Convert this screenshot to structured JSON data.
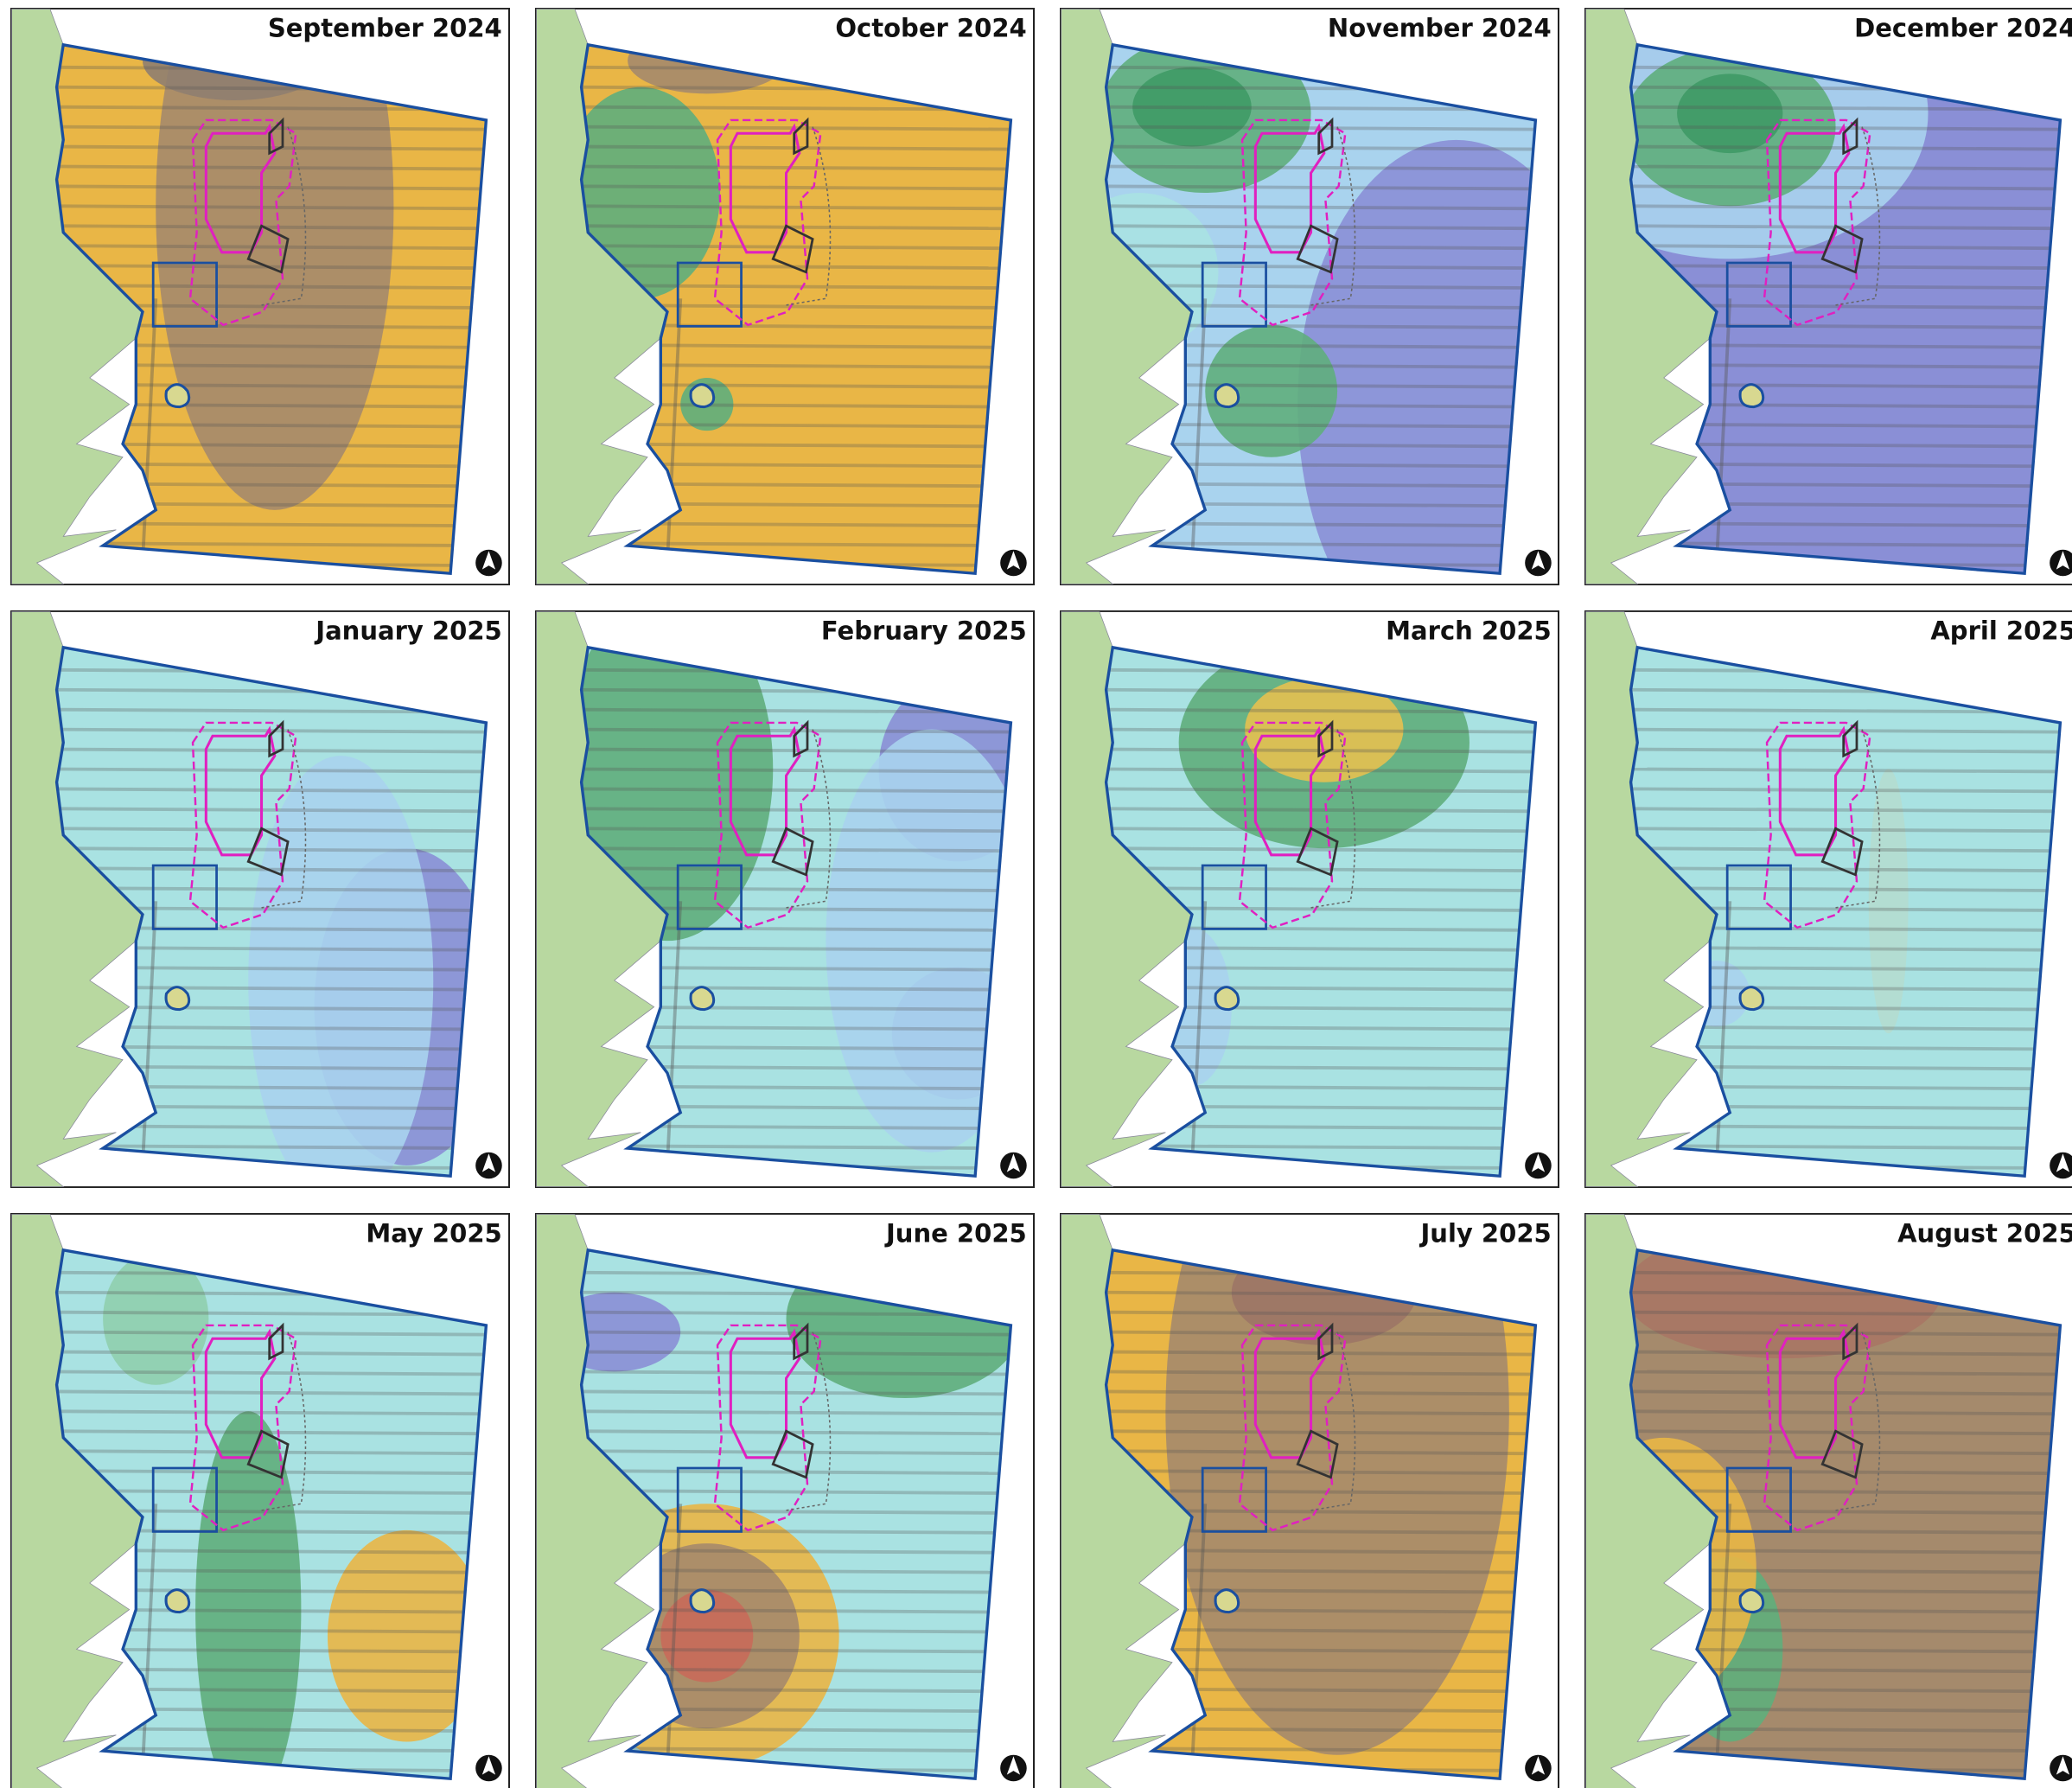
{
  "panels": [
    {
      "title": "September 2024"
    },
    {
      "title": "October 2024"
    },
    {
      "title": "November 2024"
    },
    {
      "title": "December 2024"
    },
    {
      "title": "January 2025"
    },
    {
      "title": "February 2025"
    },
    {
      "title": "March 2025"
    },
    {
      "title": "April 2025"
    },
    {
      "title": "May 2025"
    },
    {
      "title": "June 2025"
    },
    {
      "title": "July 2025"
    },
    {
      "title": "August 2025"
    }
  ]
}
